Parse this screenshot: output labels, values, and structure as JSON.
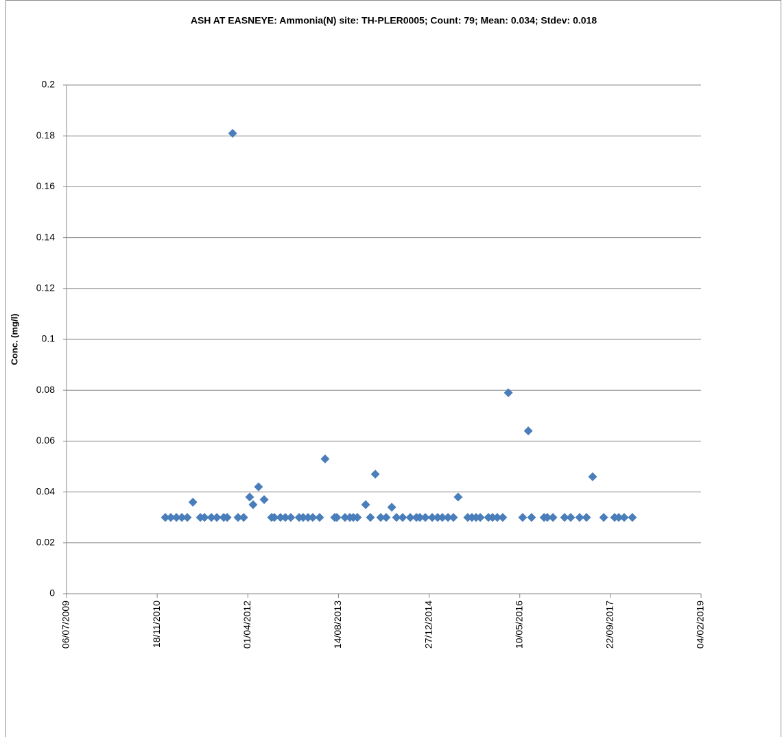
{
  "chart_data": {
    "type": "scatter",
    "title": "ASH AT EASNEYE: Ammonia(N) site: TH-PLER0005; Count: 79; Mean: 0.034; Stdev: 0.018",
    "y_label": "Conc. (mg/l)",
    "color": "#4a7ebb",
    "marker": "diamond",
    "grid": true,
    "xlim": [
      "06/07/2009",
      "04/02/2019"
    ],
    "xticks": [
      "06/07/2009",
      "18/11/2010",
      "01/04/2012",
      "14/08/2013",
      "27/12/2014",
      "10/05/2016",
      "22/09/2017",
      "04/02/2019"
    ],
    "ylim": [
      0,
      0.2
    ],
    "yticks": [
      0,
      0.02,
      0.04,
      0.06,
      0.08,
      0.1,
      0.12,
      0.14,
      0.16,
      0.18,
      0.2
    ],
    "x": [
      "02/01/2011",
      "01/02/2011",
      "04/03/2011",
      "03/04/2011",
      "03/05/2011",
      "03/06/2011",
      "14/07/2011",
      "06/08/2011",
      "13/09/2011",
      "13/10/2011",
      "20/11/2011",
      "09/12/2011",
      "08/01/2012",
      "07/02/2012",
      "09/03/2012",
      "11/04/2012",
      "30/04/2012",
      "30/05/2012",
      "30/06/2012",
      "10/08/2012",
      "25/08/2012",
      "28/09/2012",
      "25/10/2012",
      "24/11/2012",
      "09/01/2013",
      "31/01/2013",
      "27/02/2013",
      "25/03/2013",
      "02/05/2013",
      "01/06/2013",
      "24/07/2013",
      "05/08/2013",
      "19/09/2013",
      "16/10/2013",
      "04/11/2013",
      "26/11/2013",
      "11/01/2014",
      "06/02/2014",
      "05/03/2014",
      "04/04/2014",
      "04/05/2014",
      "04/06/2014",
      "30/06/2014",
      "03/08/2014",
      "14/09/2014",
      "18/10/2014",
      "06/11/2014",
      "06/12/2014",
      "13/01/2015",
      "12/02/2015",
      "10/03/2015",
      "10/04/2015",
      "10/05/2015",
      "05/06/2015",
      "28/07/2015",
      "20/08/2015",
      "12/09/2015",
      "05/10/2015",
      "19/11/2015",
      "12/12/2015",
      "07/01/2016",
      "06/02/2016",
      "08/03/2016",
      "26/05/2016",
      "26/06/2016",
      "14/07/2016",
      "21/09/2016",
      "09/10/2016",
      "09/11/2016",
      "12/01/2017",
      "15/02/2017",
      "05/04/2017",
      "13/05/2017",
      "16/06/2017",
      "16/08/2017",
      "15/10/2017",
      "07/11/2017",
      "07/12/2017",
      "21/01/2018"
    ],
    "values": [
      0.03,
      0.03,
      0.03,
      0.03,
      0.03,
      0.036,
      0.03,
      0.03,
      0.03,
      0.03,
      0.03,
      0.03,
      0.181,
      0.03,
      0.03,
      0.038,
      0.035,
      0.042,
      0.037,
      0.03,
      0.03,
      0.03,
      0.03,
      0.03,
      0.03,
      0.03,
      0.03,
      0.03,
      0.03,
      0.053,
      0.03,
      0.03,
      0.03,
      0.03,
      0.03,
      0.03,
      0.035,
      0.03,
      0.047,
      0.03,
      0.03,
      0.034,
      0.03,
      0.03,
      0.03,
      0.03,
      0.03,
      0.03,
      0.03,
      0.03,
      0.03,
      0.03,
      0.03,
      0.038,
      0.03,
      0.03,
      0.03,
      0.03,
      0.03,
      0.03,
      0.03,
      0.03,
      0.079,
      0.03,
      0.064,
      0.03,
      0.03,
      0.03,
      0.03,
      0.03,
      0.03,
      0.03,
      0.03,
      0.046,
      0.03,
      0.03,
      0.03,
      0.03,
      0.03
    ]
  }
}
